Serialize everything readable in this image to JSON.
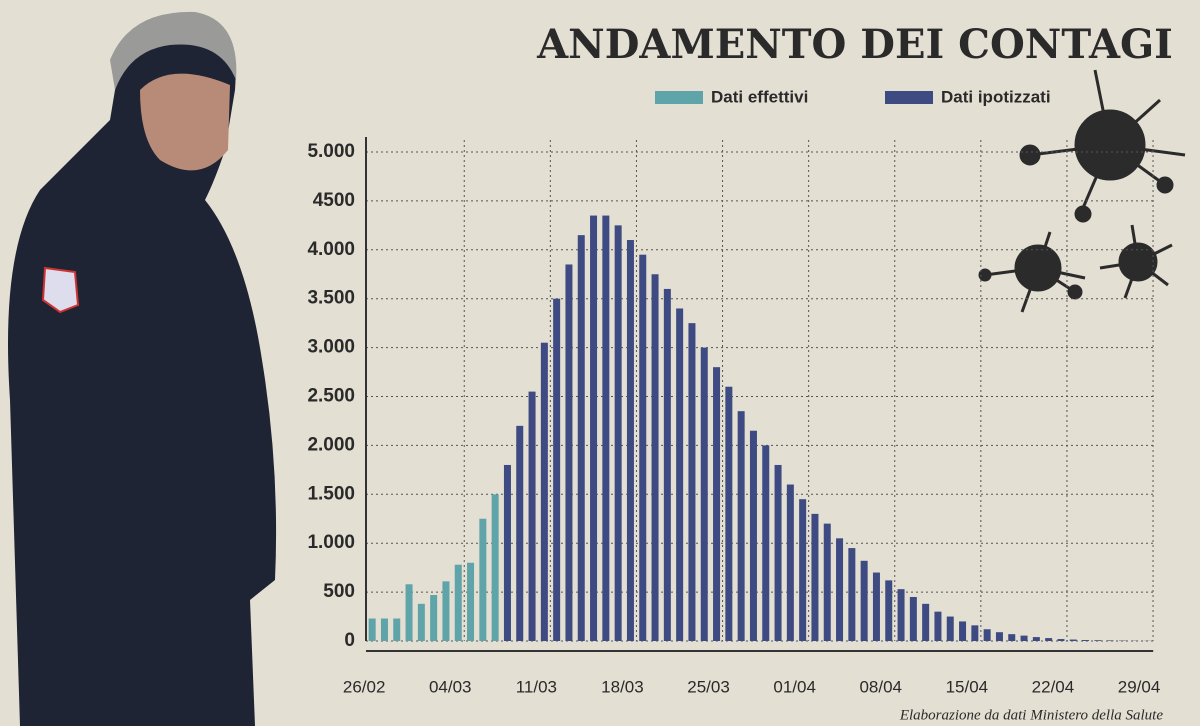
{
  "chart_data": {
    "type": "bar",
    "title": "ANDAMENTO DEI CONTAGI",
    "source": "Elaborazione da dati Ministero della Salute",
    "categories": [
      "26/02",
      null,
      null,
      null,
      null,
      null,
      null,
      "04/03",
      null,
      null,
      null,
      null,
      null,
      null,
      "11/03",
      null,
      null,
      null,
      null,
      null,
      null,
      "18/03",
      null,
      null,
      null,
      null,
      null,
      null,
      "25/03",
      null,
      null,
      null,
      null,
      null,
      null,
      "01/04",
      null,
      null,
      null,
      null,
      null,
      null,
      "08/04",
      null,
      null,
      null,
      null,
      null,
      null,
      "15/04",
      null,
      null,
      null,
      null,
      null,
      null,
      "22/04",
      null,
      null,
      null,
      null,
      null,
      null,
      "29/04"
    ],
    "series": [
      {
        "name": "Dati effettivi",
        "color": "#5ea4a9",
        "values": [
          230,
          230,
          230,
          580,
          380,
          470,
          610,
          780,
          800,
          1250,
          1500,
          null,
          null,
          null,
          null,
          null,
          null,
          null,
          null,
          null,
          null,
          null,
          null,
          null,
          null,
          null,
          null,
          null,
          null,
          null,
          null,
          null,
          null,
          null,
          null,
          null,
          null,
          null,
          null,
          null,
          null,
          null,
          null,
          null,
          null,
          null,
          null,
          null,
          null,
          null,
          null,
          null,
          null,
          null,
          null,
          null,
          null,
          null,
          null,
          null,
          null,
          null,
          null,
          null
        ]
      },
      {
        "name": "Dati ipotizzati",
        "color": "#3e4a82",
        "values": [
          null,
          null,
          null,
          null,
          null,
          null,
          null,
          null,
          null,
          null,
          null,
          1800,
          2200,
          2550,
          3050,
          3500,
          3850,
          4150,
          4350,
          4350,
          4250,
          4100,
          3950,
          3750,
          3600,
          3400,
          3250,
          3000,
          2800,
          2600,
          2350,
          2150,
          2000,
          1800,
          1600,
          1450,
          1300,
          1200,
          1050,
          950,
          820,
          700,
          620,
          530,
          450,
          380,
          300,
          250,
          200,
          160,
          120,
          90,
          70,
          55,
          40,
          30,
          20,
          15,
          10,
          8,
          6,
          4,
          3,
          2
        ]
      }
    ],
    "ylim": [
      0,
      5000
    ],
    "yticks": [
      0,
      500,
      {
        "value": 1000,
        "label": "1.000"
      },
      {
        "value": 1500,
        "label": "1.500"
      },
      {
        "value": 2000,
        "label": "2.000"
      },
      {
        "value": 2500,
        "label": "2.500"
      },
      {
        "value": 3000,
        "label": "3.000"
      },
      {
        "value": 3500,
        "label": "3.500"
      },
      {
        "value": 4000,
        "label": "4.000"
      },
      4500,
      {
        "value": 5000,
        "label": "5.000"
      }
    ],
    "grid": true
  }
}
